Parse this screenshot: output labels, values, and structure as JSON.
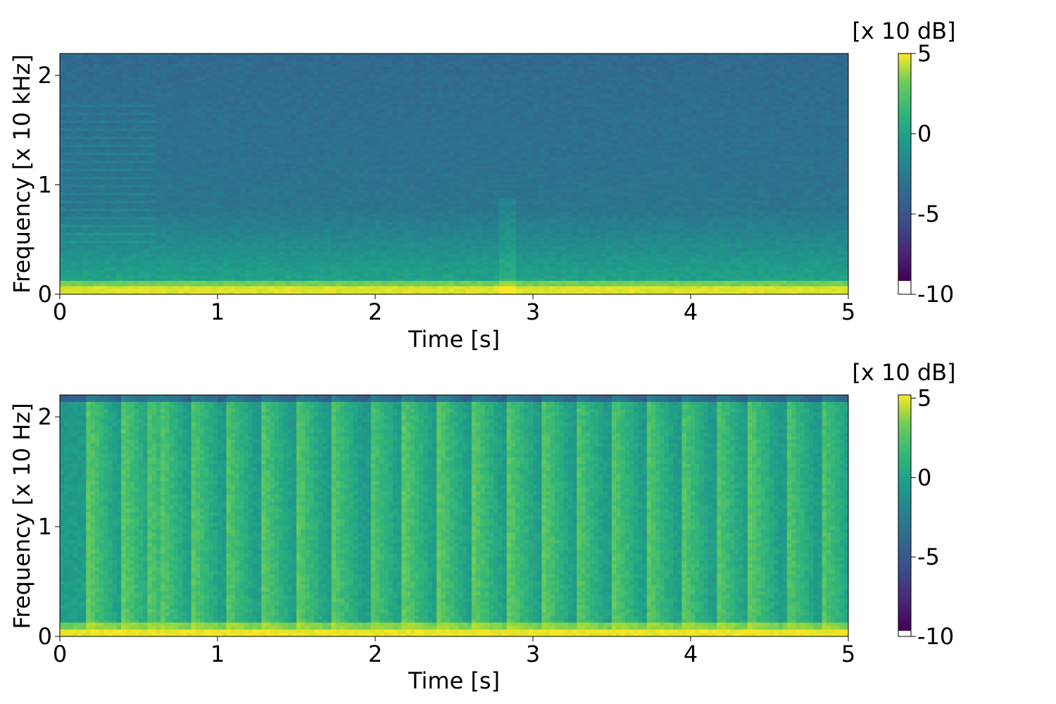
{
  "chart_data": [
    {
      "type": "heatmap",
      "title": "",
      "xlabel": "Time [s]",
      "ylabel": "Frequency [x 10 kHz]",
      "xlim": [
        0,
        5
      ],
      "ylim": [
        0,
        2.2
      ],
      "xticks": [
        0,
        1,
        2,
        3,
        4,
        5
      ],
      "xtick_labels": [
        "0",
        "1",
        "2",
        "3",
        "4",
        "5"
      ],
      "yticks": [
        0,
        1,
        2
      ],
      "ytick_labels": [
        "0",
        "1",
        "2"
      ],
      "colormap": "viridis",
      "grid": false,
      "colorbar": {
        "label": "[x 10 dB]",
        "range": [
          -10,
          5
        ],
        "ticks": [
          5,
          0,
          -5,
          -10
        ],
        "tick_labels": [
          "5",
          "0",
          "-5",
          "-10"
        ]
      },
      "description_values": {
        "low_band_level_db10": 4.5,
        "high_band_level_db10": -3.5
      }
    },
    {
      "type": "heatmap",
      "title": "",
      "xlabel": "Time [s]",
      "ylabel": "Frequency [x 10 Hz]",
      "xlim": [
        0,
        5
      ],
      "ylim": [
        0,
        2.2
      ],
      "xticks": [
        0,
        1,
        2,
        3,
        4,
        5
      ],
      "xtick_labels": [
        "0",
        "1",
        "2",
        "3",
        "4",
        "5"
      ],
      "yticks": [
        0,
        1,
        2
      ],
      "ytick_labels": [
        "0",
        "1",
        "2"
      ],
      "colormap": "viridis",
      "grid": false,
      "colorbar": {
        "label": "[x 10 dB]",
        "range": [
          -10,
          5.2
        ],
        "ticks": [
          5,
          0,
          -5,
          -10
        ],
        "tick_labels": [
          "5",
          "0",
          "-5",
          "-10"
        ]
      },
      "onset_times_s": [
        0.18,
        0.4,
        0.55,
        0.63,
        0.83,
        1.05,
        1.28,
        1.5,
        1.72,
        1.96,
        2.18,
        2.4,
        2.62,
        2.84,
        3.06,
        3.27,
        3.5,
        3.72,
        3.94,
        4.16,
        4.37,
        4.6,
        4.82
      ]
    }
  ]
}
